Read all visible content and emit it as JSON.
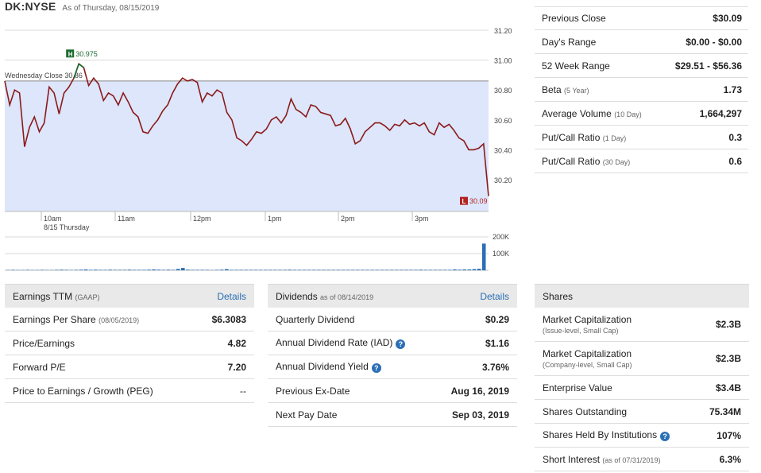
{
  "header": {
    "symbol": "DK:NYSE",
    "as_of": "As of Thursday, 08/15/2019"
  },
  "chart": {
    "y_ticks": [
      "31.20",
      "31.00",
      "30.80",
      "30.60",
      "30.40",
      "30.20"
    ],
    "y_tick_values": [
      31.2,
      31.0,
      30.8,
      30.6,
      30.4,
      30.2
    ],
    "x_ticks": [
      "10am",
      "11am",
      "12pm",
      "1pm",
      "2pm",
      "3pm"
    ],
    "x_sub": "8/15 Thursday",
    "prev_close_label": "Wednesday Close 30.86",
    "prev_close": 30.86,
    "high_label": "30.975",
    "low_label": "30.09",
    "volume_ticks": [
      "200K",
      "100K"
    ],
    "colors": {
      "line": "#8b1a1a",
      "high_line": "#1a6b2e",
      "fill": "#dde6fb",
      "high_badge": "#1a6b2e",
      "low_badge": "#b22222",
      "volume": "#2a6fb6"
    }
  },
  "chart_data": {
    "type": "line",
    "title": "",
    "xlabel": "",
    "ylabel": "",
    "ylim": [
      30.0,
      31.25
    ],
    "series": [
      {
        "values": [
          30.86,
          30.7,
          30.8,
          30.78,
          30.42,
          30.55,
          30.62,
          30.52,
          30.58,
          30.82,
          30.78,
          30.64,
          30.78,
          30.82,
          30.88,
          30.975,
          30.95,
          30.83,
          30.88,
          30.84,
          30.73,
          30.78,
          30.76,
          30.7,
          30.78,
          30.72,
          30.65,
          30.62,
          30.52,
          30.51,
          30.56,
          30.6,
          30.66,
          30.7,
          30.78,
          30.84,
          30.88,
          30.86,
          30.87,
          30.85,
          30.72,
          30.78,
          30.76,
          30.8,
          30.78,
          30.65,
          30.6,
          30.48,
          30.46,
          30.43,
          30.47,
          30.52,
          30.51,
          30.54,
          30.6,
          30.62,
          30.58,
          30.63,
          30.74,
          30.67,
          30.65,
          30.62,
          30.7,
          30.69,
          30.65,
          30.64,
          30.63,
          30.56,
          30.57,
          30.61,
          30.54,
          30.44,
          30.46,
          30.52,
          30.55,
          30.58,
          30.58,
          30.56,
          30.53,
          30.57,
          30.56,
          30.6,
          30.57,
          30.58,
          30.56,
          30.58,
          30.52,
          30.5,
          30.58,
          30.55,
          30.57,
          30.53,
          30.48,
          30.46,
          30.4,
          30.4,
          30.41,
          30.44,
          30.09
        ]
      }
    ],
    "volume": [
      2,
      3,
      2,
      2,
      3,
      2,
      2,
      3,
      2,
      2,
      3,
      4,
      3,
      2,
      3,
      4,
      5,
      3,
      4,
      3,
      3,
      4,
      3,
      3,
      3,
      4,
      3,
      3,
      3,
      4,
      5,
      4,
      3,
      4,
      3,
      8,
      14,
      4,
      3,
      3,
      3,
      3,
      2,
      3,
      4,
      7,
      3,
      3,
      3,
      3,
      3,
      3,
      3,
      3,
      3,
      3,
      3,
      3,
      4,
      3,
      3,
      3,
      3,
      3,
      3,
      3,
      3,
      3,
      3,
      3,
      3,
      3,
      3,
      3,
      3,
      3,
      3,
      3,
      3,
      3,
      3,
      3,
      3,
      3,
      3,
      4,
      3,
      3,
      3,
      3,
      3,
      3,
      5,
      4,
      5,
      5,
      7,
      9,
      160
    ]
  },
  "stats": [
    {
      "label": "Previous Close",
      "sub": "",
      "value": "$30.09"
    },
    {
      "label": "Day's Range",
      "sub": "",
      "value": "$0.00 - $0.00"
    },
    {
      "label": "52 Week Range",
      "sub": "",
      "value": "$29.51 - $56.36"
    },
    {
      "label": "Beta",
      "sub": "(5 Year)",
      "value": "1.73"
    },
    {
      "label": "Average Volume",
      "sub": "(10 Day)",
      "value": "1,664,297"
    },
    {
      "label": "Put/Call Ratio",
      "sub": "(1 Day)",
      "value": "0.3"
    },
    {
      "label": "Put/Call Ratio",
      "sub": "(30 Day)",
      "value": "0.6"
    }
  ],
  "earnings": {
    "title": "Earnings TTM",
    "title_sub": "(GAAP)",
    "link": "Details",
    "rows": [
      {
        "label": "Earnings Per Share",
        "sub": "(08/05/2019)",
        "value": "$6.3083"
      },
      {
        "label": "Price/Earnings",
        "sub": "",
        "value": "4.82"
      },
      {
        "label": "Forward P/E",
        "sub": "",
        "value": "7.20"
      },
      {
        "label": "Price to Earnings / Growth (PEG)",
        "sub": "",
        "value": "--"
      }
    ]
  },
  "dividends": {
    "title": "Dividends",
    "title_sub": "as of 08/14/2019",
    "link": "Details",
    "rows": [
      {
        "label": "Quarterly Dividend",
        "value": "$0.29"
      },
      {
        "label": "Annual Dividend Rate (IAD)",
        "value": "$1.16"
      },
      {
        "label": "Annual Dividend Yield",
        "value": "3.76%"
      },
      {
        "label": "Previous Ex-Date",
        "value": "Aug 16, 2019"
      },
      {
        "label": "Next Pay Date",
        "value": "Sep 03, 2019"
      }
    ]
  },
  "shares": {
    "title": "Shares",
    "rows": [
      {
        "label": "Market Capitalization",
        "line2": "(Issue-level, Small Cap)",
        "value": "$2.3B"
      },
      {
        "label": "Market Capitalization",
        "line2": "(Company-level, Small Cap)",
        "value": "$2.3B"
      },
      {
        "label": "Enterprise Value",
        "value": "$3.4B"
      },
      {
        "label": "Shares Outstanding",
        "value": "75.34M"
      },
      {
        "label": "Shares Held By Institutions",
        "value": "107%"
      },
      {
        "label": "Short Interest",
        "sub": "(as of 07/31/2019)",
        "value": "6.3%"
      }
    ]
  }
}
